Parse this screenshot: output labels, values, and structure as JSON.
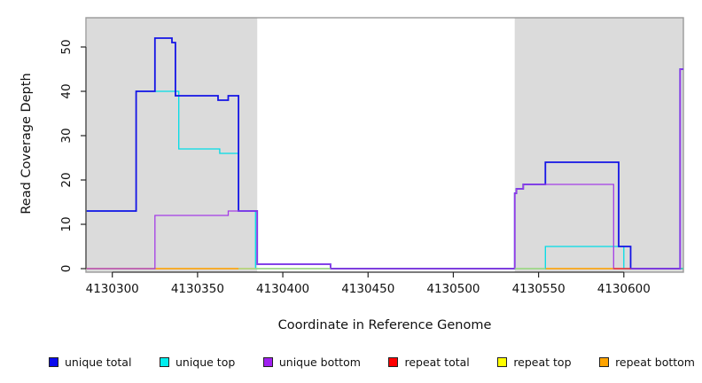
{
  "chart_data": {
    "type": "line",
    "subtype": "step-after",
    "title": "",
    "xlabel": "Coordinate in Reference Genome",
    "ylabel": "Read Coverage Depth",
    "xlim": [
      4130285,
      4130635
    ],
    "ylim": [
      0,
      57
    ],
    "x_end": 4130635,
    "grid": false,
    "x_ticks": [
      4130300,
      4130350,
      4130400,
      4130450,
      4130500,
      4130550,
      4130600
    ],
    "y_ticks": [
      0,
      10,
      20,
      30,
      40,
      50
    ],
    "shade_color": "#dbdbdb",
    "shaded_regions": [
      {
        "from": 4130285,
        "to": 4130385
      },
      {
        "from": 4130536,
        "to": 4130635
      }
    ],
    "draw_order": [
      "repeat total",
      "repeat top",
      "repeat bottom",
      "unique top",
      "unique total",
      "unique bottom"
    ],
    "series": [
      {
        "name": "unique total",
        "color": "#1414e6",
        "width": 1.8,
        "points": [
          [
            4130285,
            13
          ],
          [
            4130314,
            40
          ],
          [
            4130325,
            52
          ],
          [
            4130335,
            51
          ],
          [
            4130337,
            39
          ],
          [
            4130362,
            38
          ],
          [
            4130368,
            39
          ],
          [
            4130374,
            13
          ],
          [
            4130385,
            1
          ],
          [
            4130428,
            0
          ],
          [
            4130536,
            17
          ],
          [
            4130537,
            18
          ],
          [
            4130541,
            19
          ],
          [
            4130554,
            24
          ],
          [
            4130597,
            5
          ],
          [
            4130604,
            0
          ],
          [
            4130633,
            45
          ]
        ]
      },
      {
        "name": "unique top",
        "color": "#00dce6",
        "width": 1.3,
        "points": [
          [
            4130285,
            13
          ],
          [
            4130314,
            40
          ],
          [
            4130339,
            27
          ],
          [
            4130363,
            26
          ],
          [
            4130374,
            13
          ],
          [
            4130384,
            0
          ],
          [
            4130554,
            5
          ],
          [
            4130600,
            0
          ]
        ]
      },
      {
        "name": "unique bottom",
        "color": "#a43ce6",
        "width": 1.3,
        "points": [
          [
            4130285,
            0
          ],
          [
            4130325,
            12
          ],
          [
            4130368,
            13
          ],
          [
            4130385,
            1
          ],
          [
            4130428,
            0
          ],
          [
            4130536,
            17
          ],
          [
            4130537,
            18
          ],
          [
            4130541,
            19
          ],
          [
            4130594,
            0
          ],
          [
            4130633,
            45
          ]
        ]
      },
      {
        "name": "repeat total",
        "color": "#f50f0f",
        "width": 1.3,
        "points": [
          [
            4130285,
            0
          ]
        ]
      },
      {
        "name": "repeat top",
        "color": "#f2f200",
        "width": 1.3,
        "points": [
          [
            4130285,
            0
          ]
        ]
      },
      {
        "name": "repeat bottom",
        "color": "#ffa400",
        "width": 1.3,
        "points": [
          [
            4130285,
            0
          ]
        ]
      }
    ],
    "baseline_accents": [
      {
        "color": "#9ce69c",
        "from": 4130374,
        "to": 4130428,
        "y": 0
      },
      {
        "color": "#9ce69c",
        "from": 4130536,
        "to": 4130554,
        "y": 0
      },
      {
        "color": "#ee2233",
        "from": 4130594,
        "to": 4130604,
        "y": 0
      }
    ]
  },
  "axes": {
    "x_label": "Coordinate in Reference Genome",
    "y_label": "Read Coverage Depth"
  },
  "legend": {
    "items": [
      {
        "label": "unique total",
        "color": "#0a0aee"
      },
      {
        "label": "unique top",
        "color": "#00eeee"
      },
      {
        "label": "unique bottom",
        "color": "#a020f0"
      },
      {
        "label": "repeat total",
        "color": "#ff0000"
      },
      {
        "label": "repeat top",
        "color": "#ffff00"
      },
      {
        "label": "repeat bottom",
        "color": "#ffa400"
      }
    ]
  }
}
